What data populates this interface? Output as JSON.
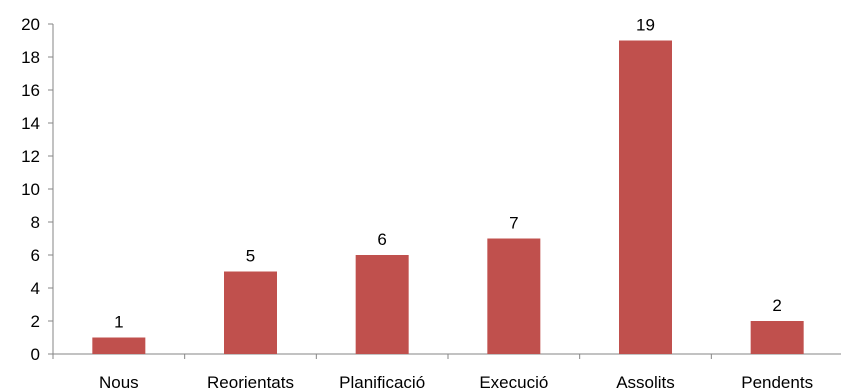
{
  "chart_data": {
    "type": "bar",
    "categories": [
      "Nous",
      "Reorientats",
      "Planificació",
      "Execució",
      "Assolits",
      "Pendents"
    ],
    "values": [
      1,
      5,
      6,
      7,
      19,
      2
    ],
    "data_labels": [
      "1",
      "5",
      "6",
      "7",
      "19",
      "2"
    ],
    "title": "",
    "xlabel": "",
    "ylabel": "",
    "ylim": [
      0,
      20
    ],
    "yticks": [
      0,
      2,
      4,
      6,
      8,
      10,
      12,
      14,
      16,
      18,
      20
    ],
    "grid": false,
    "legend": "none",
    "bar_color": "#c0504d",
    "axis_color": "#868686"
  }
}
